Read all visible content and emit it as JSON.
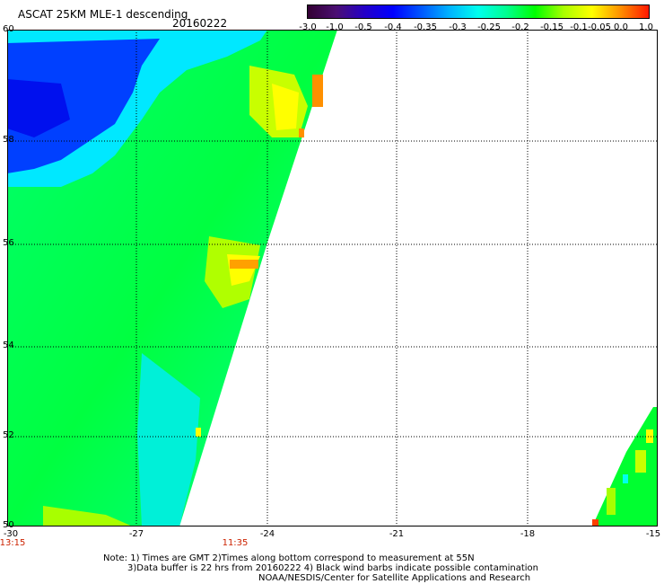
{
  "header": {
    "title": "ASCAT 25KM MLE-1 descending",
    "date": "20160222"
  },
  "colorbar": {
    "labels": [
      "-3.0",
      "-1.0",
      "-0.5",
      "-0.4",
      "-0.35",
      "-0.3",
      "-0.25",
      "-0.2",
      "-0.15",
      "-0.1",
      "-0.05",
      "0.0",
      "1.0"
    ],
    "colors": [
      "#330033",
      "#4b0f73",
      "#2400c8",
      "#0000ff",
      "#0058ff",
      "#00b4ff",
      "#00ffee",
      "#00ff90",
      "#00ff00",
      "#a8ff00",
      "#ffff00",
      "#ff9000",
      "#ff1800"
    ]
  },
  "map": {
    "lat_labels": [
      "60",
      "58",
      "56",
      "54",
      "52",
      "50"
    ],
    "lon_labels": [
      "-30",
      "-27",
      "-24",
      "-21",
      "-18",
      "-15"
    ],
    "time_labels": [
      "13:15",
      "11:35"
    ]
  },
  "notes": {
    "line1": "Note: 1) Times are GMT 2)Times along bottom correspond to measurement at 55N",
    "line2": "3)Data buffer is 22 hrs from 20160222 4) Black wind barbs indicate possible contamination",
    "line3": "NOAA/NESDIS/Center for Satellite Applications and Research"
  },
  "style": {
    "time_color": "#cc2200",
    "grid_color": "#000000",
    "background": "#ffffff"
  }
}
